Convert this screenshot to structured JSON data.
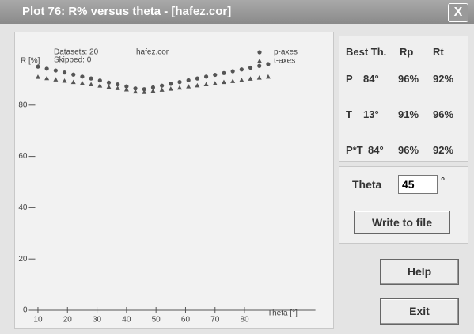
{
  "window": {
    "title": "Plot 76: R% versus theta - [hafez.cor]",
    "close": "X"
  },
  "chart_data": {
    "type": "scatter",
    "info": {
      "datasets": "Datasets: 20",
      "skipped": "Skipped:  0",
      "file": "hafez.cor"
    },
    "xlabel": "Theta [°]",
    "ylabel": "R [%]",
    "x": [
      10,
      13,
      16,
      19,
      22,
      25,
      28,
      31,
      34,
      37,
      40,
      43,
      46,
      49,
      52,
      55,
      58,
      61,
      64,
      67,
      70,
      73,
      76,
      79,
      82,
      85,
      88
    ],
    "series": [
      {
        "name": "p-axes",
        "color": "#555555",
        "marker": "circle",
        "values": [
          95,
          94.2,
          93.5,
          92.7,
          91.9,
          91.1,
          90.4,
          89.6,
          88.8,
          88.1,
          87.3,
          86.5,
          86.2,
          86.9,
          87.6,
          88.3,
          89.0,
          89.7,
          90.4,
          91.1,
          91.8,
          92.5,
          93.2,
          93.9,
          94.6,
          95.3,
          96
        ]
      },
      {
        "name": "t-axes",
        "color": "#555555",
        "marker": "triangle",
        "values": [
          91,
          90.5,
          90,
          89.5,
          89,
          88.6,
          88.1,
          87.6,
          87.1,
          86.6,
          86.1,
          85.3,
          85.1,
          85.6,
          86.0,
          86.4,
          86.8,
          87.3,
          87.7,
          88.1,
          88.5,
          89.0,
          89.4,
          89.8,
          90.3,
          90.7,
          91.1
        ]
      }
    ],
    "xlim": [
      8,
      104
    ],
    "xticks": [
      10,
      20,
      30,
      40,
      50,
      60,
      70,
      80
    ],
    "ylim": [
      0,
      100
    ],
    "yticks": [
      0,
      20,
      40,
      60,
      80
    ]
  },
  "table": {
    "headers": [
      "Best Th.",
      "Rp",
      "Rt"
    ],
    "rows": [
      [
        "P",
        "84°",
        "96%",
        "92%"
      ],
      [
        "T",
        "13°",
        "91%",
        "96%"
      ],
      [
        "P*T",
        "84°",
        "96%",
        "92%"
      ]
    ]
  },
  "theta": {
    "label": "Theta",
    "value": "45",
    "unit": "°"
  },
  "buttons": {
    "write": "Write to file",
    "help": "Help",
    "exit": "Exit"
  }
}
